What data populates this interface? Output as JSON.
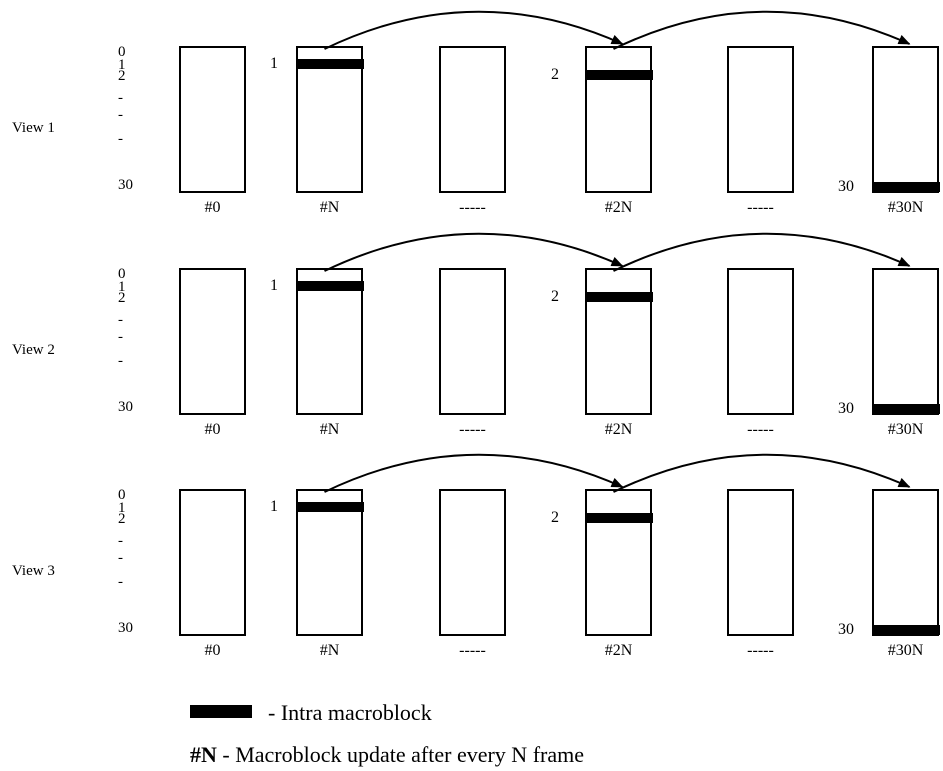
{
  "views": [
    {
      "label": "View 1",
      "row_labels": [
        "0",
        "1",
        "2",
        "-",
        "-",
        "-",
        "30"
      ],
      "frames": [
        {
          "label": "#0",
          "block": null
        },
        {
          "label": "#N",
          "block": "1"
        },
        {
          "label": "-----",
          "block": null
        },
        {
          "label": "#2N",
          "block": "2"
        },
        {
          "label": "-----",
          "block": null
        },
        {
          "label": "#30N",
          "block": "30"
        }
      ]
    },
    {
      "label": "View 2",
      "row_labels": [
        "0",
        "1",
        "2",
        "-",
        "-",
        "-",
        "30"
      ],
      "frames": [
        {
          "label": "#0",
          "block": null
        },
        {
          "label": "#N",
          "block": "1"
        },
        {
          "label": "-----",
          "block": null
        },
        {
          "label": "#2N",
          "block": "2"
        },
        {
          "label": "-----",
          "block": null
        },
        {
          "label": "#30N",
          "block": "30"
        }
      ]
    },
    {
      "label": "View 3",
      "row_labels": [
        "0",
        "1",
        "2",
        "-",
        "-",
        "-",
        "30"
      ],
      "frames": [
        {
          "label": "#0",
          "block": null
        },
        {
          "label": "#N",
          "block": "1"
        },
        {
          "label": "-----",
          "block": null
        },
        {
          "label": "#2N",
          "block": "2"
        },
        {
          "label": "-----",
          "block": null
        },
        {
          "label": "#30N",
          "block": "30"
        }
      ]
    }
  ],
  "legend": {
    "intra_text": "-  Intra macroblock",
    "update_symbol": "#N",
    "update_text": " - Macroblock update after every N frame"
  },
  "colors": {
    "stroke": "#000000",
    "fill": "#ffffff",
    "block": "#000000"
  }
}
